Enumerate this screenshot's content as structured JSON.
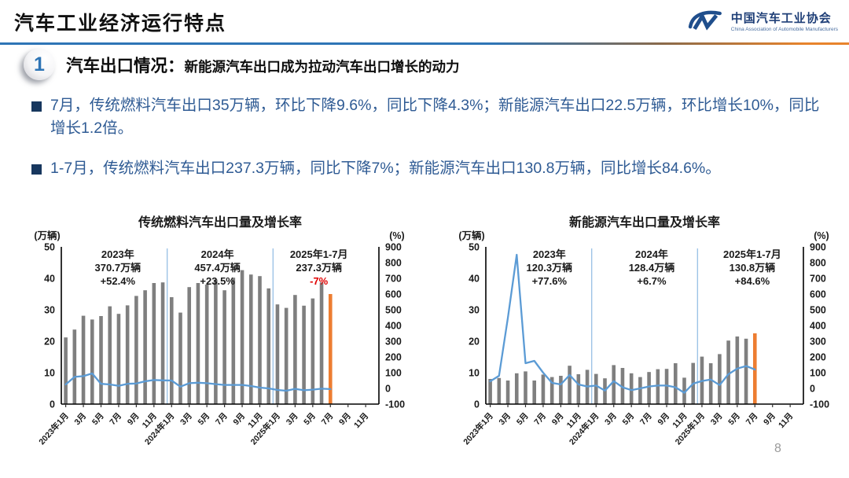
{
  "header": {
    "title": "汽车工业经济运行特点",
    "logo": {
      "org_cn": "中国汽车工业协会",
      "org_en": "China Association of Automobile Manufacturers"
    }
  },
  "section": {
    "badge": "1",
    "heading": "汽车出口情况：",
    "subheading": "新能源汽车出口成为拉动汽车出口增长的动力"
  },
  "bullets": [
    "7月，传统燃料汽车出口35万辆，环比下降9.6%，同比下降4.3%；新能源汽车出口22.5万辆，环比增长10%，同比增长1.2倍。",
    "1-7月，传统燃料汽车出口237.3万辆，同比下降7%；新能源汽车出口130.8万辆，同比增长84.6%。"
  ],
  "page_number": "8",
  "colors": {
    "accent_blue": "#2E75B6",
    "accent_orange": "#E8842C",
    "bullet_text": "#2F5B94",
    "bullet_square": "#17375E",
    "bar_gray": "#7F7F7F",
    "bar_orange": "#ED7D31",
    "line_blue": "#5B9BD5",
    "separator_blue": "#9DC3E6",
    "negative_red": "#E00000"
  },
  "chart_data": [
    {
      "type": "bar+line",
      "title": "传统燃料汽车出口量及增长率",
      "left_axis_label": "(万辆)",
      "right_axis_label": "(%)",
      "left_axis": {
        "min": 0,
        "max": 50,
        "step": 10
      },
      "right_axis": {
        "min": -100,
        "max": 900,
        "step": 100
      },
      "months_total": 36,
      "x_tick_labels": [
        "2023年1月",
        "3月",
        "5月",
        "7月",
        "9月",
        "11月",
        "2024年1月",
        "3月",
        "5月",
        "7月",
        "9月",
        "11月",
        "2025年1月",
        "3月",
        "5月",
        "7月",
        "9月",
        "11月"
      ],
      "bars_unit": "万辆",
      "bars": [
        21.2,
        23.7,
        28.1,
        26.9,
        28.0,
        31.1,
        28.7,
        31.4,
        34.4,
        36.2,
        38.5,
        38.7,
        34.0,
        29.1,
        37.2,
        38.5,
        38.0,
        39.6,
        36.2,
        40.2,
        42.6,
        41.2,
        40.7,
        36.8,
        31.7,
        30.6,
        34.7,
        31.3,
        33.6,
        38.7,
        35.0
      ],
      "line_unit": "%",
      "line": [
        25,
        73,
        78,
        95,
        29,
        25,
        16,
        29,
        31,
        45,
        53,
        51,
        50,
        11,
        33,
        36,
        33,
        27,
        22,
        22,
        22,
        15,
        5,
        0,
        -10,
        -15,
        -3,
        -12,
        -8,
        -2,
        -4.3
      ],
      "separators_after_month": [
        12,
        24
      ],
      "annotations": [
        {
          "slot": 6.4,
          "lines": [
            "2023年",
            "370.7万辆",
            "+52.4%"
          ],
          "value_color": "#1a1a1a"
        },
        {
          "slot": 17.7,
          "lines": [
            "2024年",
            "457.4万辆",
            "+23.5%"
          ],
          "value_color": "#1a1a1a"
        },
        {
          "slot": 29.2,
          "lines": [
            "2025年1-7月",
            "237.3万辆",
            "-7%"
          ],
          "value_color": "#E00000"
        }
      ],
      "bar_color": "#7F7F7F",
      "last_bar_color": "#ED7D31",
      "line_color": "#5B9BD5",
      "separator_color": "#9DC3E6"
    },
    {
      "type": "bar+line",
      "title": "新能源汽车出口量及增长率",
      "left_axis_label": "(万辆)",
      "right_axis_label": "(%)",
      "left_axis": {
        "min": 0,
        "max": 50,
        "step": 10
      },
      "right_axis": {
        "min": -100,
        "max": 900,
        "step": 100
      },
      "months_total": 36,
      "x_tick_labels": [
        "2023年1月",
        "3月",
        "5月",
        "7月",
        "9月",
        "11月",
        "2024年1月",
        "3月",
        "5月",
        "7月",
        "9月",
        "11月",
        "2025年1月",
        "3月",
        "5月",
        "7月",
        "9月",
        "11月"
      ],
      "bars_unit": "万辆",
      "bars": [
        8.0,
        8.3,
        7.5,
        9.8,
        10.4,
        7.5,
        9.4,
        8.6,
        9.0,
        12.2,
        9.5,
        10.9,
        9.6,
        8.2,
        12.4,
        11.5,
        9.8,
        8.6,
        10.2,
        11.1,
        11.2,
        13.0,
        8.4,
        13.1,
        15.1,
        13.0,
        15.9,
        20.2,
        21.5,
        20.8,
        22.5
      ],
      "line_unit": "%",
      "line": [
        45,
        80,
        450,
        850,
        160,
        175,
        100,
        35,
        25,
        85,
        25,
        12,
        18,
        -14,
        46,
        7,
        -11,
        0,
        12,
        18,
        18,
        7,
        -28,
        30,
        47,
        56,
        21,
        90,
        126,
        142,
        120
      ],
      "separators_after_month": [
        12,
        24
      ],
      "annotations": [
        {
          "slot": 7.2,
          "lines": [
            "2023年",
            "120.3万辆",
            "+77.6%"
          ],
          "value_color": "#1a1a1a"
        },
        {
          "slot": 18.8,
          "lines": [
            "2024年",
            "128.4万辆",
            "+6.7%"
          ],
          "value_color": "#1a1a1a"
        },
        {
          "slot": 30.2,
          "lines": [
            "2025年1-7月",
            "130.8万辆",
            "+84.6%"
          ],
          "value_color": "#1a1a1a"
        }
      ],
      "bar_color": "#7F7F7F",
      "last_bar_color": "#ED7D31",
      "line_color": "#5B9BD5",
      "separator_color": "#9DC3E6"
    }
  ]
}
